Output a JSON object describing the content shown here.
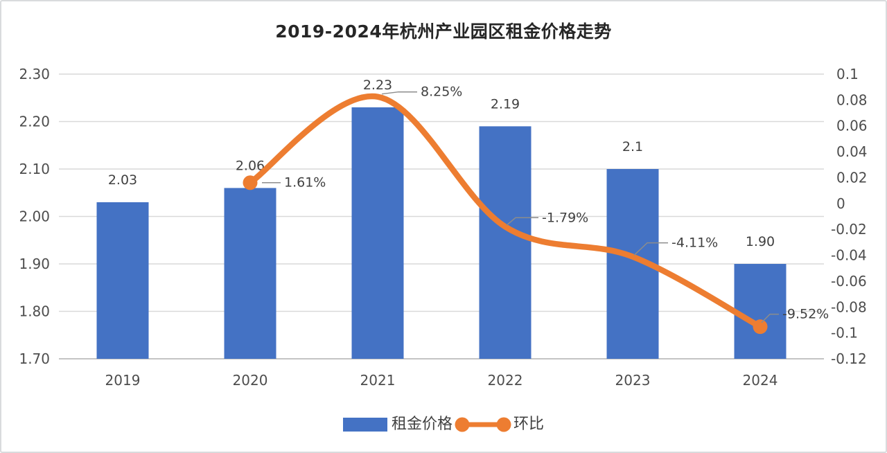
{
  "chart_data": {
    "type": "bar+line combo",
    "title": "2019-2024年杭州产业园区租金价格走势",
    "categories": [
      "2019",
      "2020",
      "2021",
      "2022",
      "2023",
      "2024"
    ],
    "series": [
      {
        "name": "租金价格",
        "type": "bar",
        "axis": "left",
        "color": "#4472C4",
        "values": [
          2.03,
          2.06,
          2.23,
          2.19,
          2.1,
          1.9
        ],
        "data_labels": [
          "2.03",
          "2.06",
          "2.23",
          "2.19",
          "2.1",
          "1.90"
        ]
      },
      {
        "name": "环比",
        "type": "line",
        "smooth": true,
        "axis": "right",
        "color": "#ED7D31",
        "values": [
          null,
          0.0161,
          0.0825,
          -0.0179,
          -0.0411,
          -0.0952
        ],
        "data_labels": [
          null,
          "1.61%",
          "8.25%",
          "-1.79%",
          "-4.11%",
          "-9.52%"
        ]
      }
    ],
    "left_axis": {
      "min": 1.7,
      "max": 2.3,
      "step": 0.1,
      "tick_labels": [
        "2.30",
        "2.20",
        "2.10",
        "2.00",
        "1.90",
        "1.80",
        "1.70"
      ]
    },
    "right_axis": {
      "min": -0.12,
      "max": 0.1,
      "step": 0.02,
      "tick_labels": [
        "0.1",
        "0.08",
        "0.06",
        "0.04",
        "0.02",
        "0",
        "-0.02",
        "-0.04",
        "-0.06",
        "-0.08",
        "-0.1",
        "-0.12"
      ]
    },
    "grid": true,
    "legend_position": "bottom"
  },
  "legend": [
    {
      "label": "租金价格",
      "color": "#4472C4"
    },
    {
      "label": "环比",
      "color": "#ED7D31"
    }
  ],
  "colors": {
    "bar": "#4472C4",
    "line": "#ED7D31",
    "gridline": "#D9D9D9",
    "axis_line": "#BFBFBF",
    "tick_text": "#4D4D4D",
    "label_text": "#404040",
    "title_text": "#262626",
    "leader_line": "#8C8C8C",
    "frame_border": "#D9DBDD",
    "background": "#FFFFFF"
  }
}
